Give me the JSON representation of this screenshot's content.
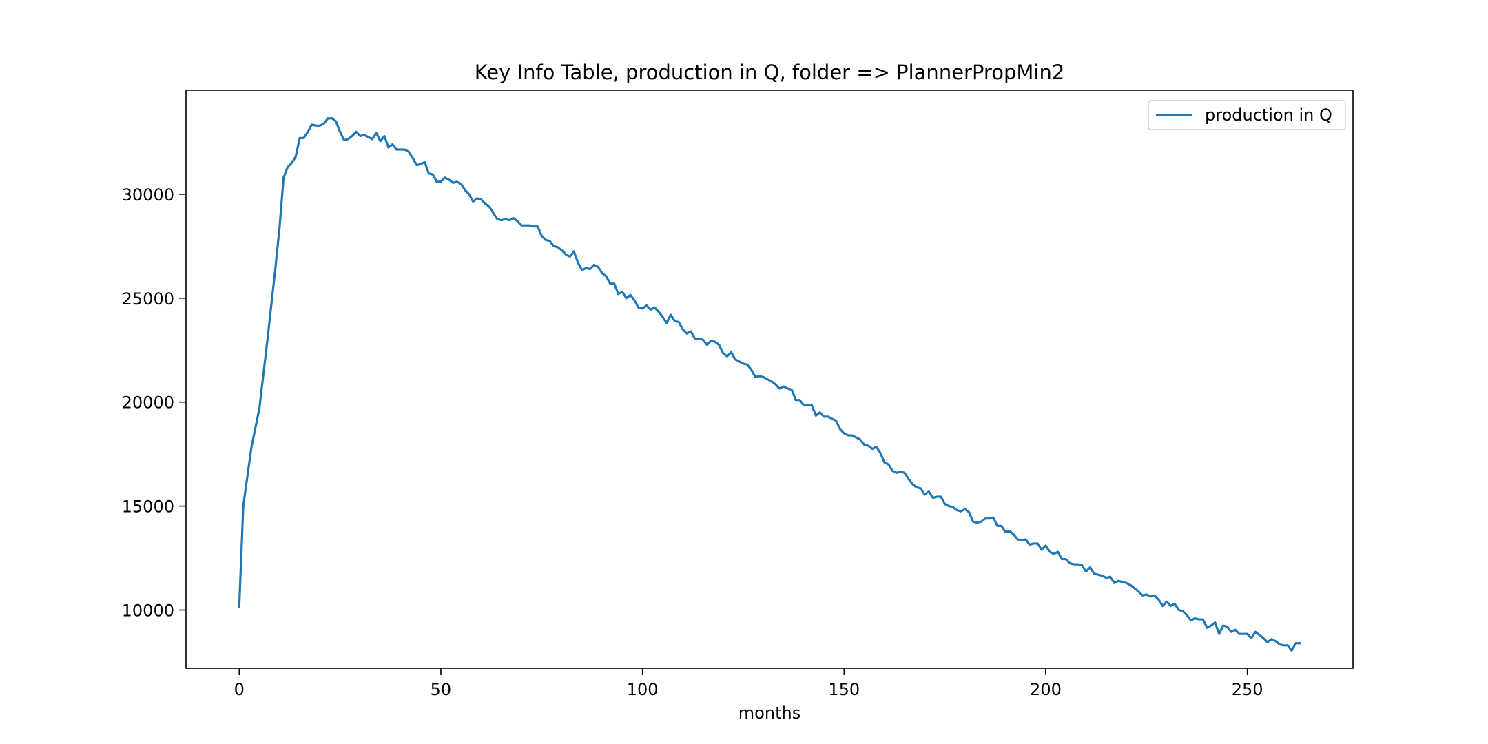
{
  "chart_data": {
    "type": "line",
    "title": "Key Info Table, production in Q, folder => PlannerPropMin2",
    "xlabel": "months",
    "ylabel": "",
    "xlim": [
      -13.2,
      276.2
    ],
    "ylim": [
      7200,
      35000
    ],
    "xticks": [
      0,
      50,
      100,
      150,
      200,
      250
    ],
    "yticks": [
      10000,
      15000,
      20000,
      25000,
      30000
    ],
    "grid": false,
    "legend": {
      "location": "top-right"
    },
    "colors": {
      "series": "#1f77b4",
      "axes": "#000000",
      "legend_border": "#cccccc"
    },
    "series": [
      {
        "name": "production in Q",
        "anchors": [
          [
            0,
            10150
          ],
          [
            1,
            15000
          ],
          [
            3,
            17800
          ],
          [
            5,
            19700
          ],
          [
            7,
            23000
          ],
          [
            9,
            26500
          ],
          [
            10,
            28400
          ],
          [
            11,
            30800
          ],
          [
            12,
            31300
          ],
          [
            13,
            31500
          ],
          [
            14,
            31800
          ],
          [
            15,
            32700
          ],
          [
            16,
            32700
          ],
          [
            17,
            33000
          ],
          [
            18,
            33350
          ],
          [
            19,
            33300
          ],
          [
            20,
            33300
          ],
          [
            21,
            33400
          ],
          [
            22,
            33650
          ],
          [
            23,
            33650
          ],
          [
            24,
            33500
          ],
          [
            25,
            33000
          ],
          [
            26,
            32600
          ],
          [
            27,
            32650
          ],
          [
            28,
            32800
          ],
          [
            29,
            33000
          ],
          [
            30,
            32800
          ],
          [
            31,
            32850
          ],
          [
            32,
            32750
          ],
          [
            33,
            32650
          ],
          [
            34,
            32950
          ],
          [
            35,
            32550
          ],
          [
            36,
            32800
          ],
          [
            37,
            32250
          ],
          [
            38,
            32400
          ],
          [
            39,
            32150
          ],
          [
            40,
            32150
          ],
          [
            41,
            32150
          ],
          [
            42,
            32050
          ],
          [
            43,
            31750
          ],
          [
            44,
            31400
          ],
          [
            45,
            31450
          ],
          [
            46,
            31550
          ],
          [
            47,
            31000
          ],
          [
            48,
            30950
          ],
          [
            49,
            30600
          ],
          [
            50,
            30600
          ],
          [
            51,
            30800
          ],
          [
            52,
            30700
          ],
          [
            53,
            30550
          ],
          [
            54,
            30600
          ],
          [
            55,
            30500
          ],
          [
            56,
            30200
          ],
          [
            57,
            30000
          ],
          [
            58,
            29650
          ],
          [
            59,
            29800
          ],
          [
            60,
            29750
          ],
          [
            61,
            29550
          ],
          [
            62,
            29400
          ],
          [
            63,
            29100
          ],
          [
            64,
            28800
          ],
          [
            65,
            28750
          ],
          [
            66,
            28800
          ],
          [
            67,
            28750
          ],
          [
            68,
            28850
          ],
          [
            69,
            28700
          ],
          [
            70,
            28500
          ],
          [
            71,
            28500
          ],
          [
            72,
            28500
          ],
          [
            73,
            28450
          ],
          [
            74,
            28450
          ],
          [
            75,
            28000
          ],
          [
            76,
            27800
          ],
          [
            77,
            27750
          ],
          [
            78,
            27500
          ],
          [
            79,
            27450
          ],
          [
            80,
            27300
          ],
          [
            81,
            27100
          ],
          [
            82,
            27000
          ],
          [
            83,
            27250
          ],
          [
            84,
            26700
          ],
          [
            85,
            26350
          ],
          [
            86,
            26450
          ],
          [
            87,
            26400
          ],
          [
            88,
            26600
          ],
          [
            89,
            26500
          ],
          [
            90,
            26200
          ],
          [
            91,
            26050
          ],
          [
            92,
            25700
          ],
          [
            93,
            25700
          ],
          [
            94,
            25200
          ],
          [
            95,
            25300
          ],
          [
            96,
            25000
          ],
          [
            97,
            25150
          ],
          [
            98,
            24900
          ],
          [
            99,
            24550
          ],
          [
            100,
            24500
          ],
          [
            101,
            24650
          ],
          [
            102,
            24450
          ],
          [
            103,
            24550
          ],
          [
            104,
            24350
          ],
          [
            105,
            24100
          ],
          [
            106,
            23800
          ],
          [
            107,
            24200
          ],
          [
            108,
            23900
          ],
          [
            109,
            23850
          ],
          [
            110,
            23500
          ],
          [
            111,
            23300
          ],
          [
            112,
            23400
          ],
          [
            113,
            23050
          ],
          [
            114,
            23050
          ],
          [
            115,
            23000
          ],
          [
            116,
            22750
          ],
          [
            117,
            22950
          ],
          [
            118,
            22900
          ],
          [
            119,
            22750
          ],
          [
            120,
            22350
          ],
          [
            121,
            22200
          ],
          [
            122,
            22400
          ],
          [
            123,
            22050
          ],
          [
            124,
            21950
          ],
          [
            125,
            21850
          ],
          [
            126,
            21800
          ],
          [
            127,
            21550
          ],
          [
            128,
            21200
          ],
          [
            129,
            21250
          ],
          [
            130,
            21200
          ],
          [
            131,
            21100
          ],
          [
            132,
            21000
          ],
          [
            133,
            20850
          ],
          [
            134,
            20650
          ],
          [
            135,
            20750
          ],
          [
            136,
            20650
          ],
          [
            137,
            20600
          ],
          [
            138,
            20100
          ],
          [
            139,
            20100
          ],
          [
            140,
            19850
          ],
          [
            141,
            19850
          ],
          [
            142,
            19850
          ],
          [
            143,
            19350
          ],
          [
            144,
            19500
          ],
          [
            145,
            19300
          ],
          [
            146,
            19300
          ],
          [
            147,
            19200
          ],
          [
            148,
            19100
          ],
          [
            149,
            18700
          ],
          [
            150,
            18500
          ],
          [
            151,
            18400
          ],
          [
            152,
            18400
          ],
          [
            153,
            18300
          ],
          [
            154,
            18200
          ],
          [
            155,
            17950
          ],
          [
            156,
            17900
          ],
          [
            157,
            17750
          ],
          [
            158,
            17850
          ],
          [
            159,
            17550
          ],
          [
            160,
            17100
          ],
          [
            161,
            17000
          ],
          [
            162,
            16700
          ],
          [
            163,
            16600
          ],
          [
            164,
            16650
          ],
          [
            165,
            16600
          ],
          [
            166,
            16300
          ],
          [
            167,
            16050
          ],
          [
            168,
            15900
          ],
          [
            169,
            15850
          ],
          [
            170,
            15550
          ],
          [
            171,
            15700
          ],
          [
            172,
            15400
          ],
          [
            173,
            15450
          ],
          [
            174,
            15450
          ],
          [
            175,
            15100
          ],
          [
            176,
            15000
          ],
          [
            177,
            14950
          ],
          [
            178,
            14800
          ],
          [
            179,
            14750
          ],
          [
            180,
            14850
          ],
          [
            181,
            14700
          ],
          [
            182,
            14250
          ],
          [
            183,
            14200
          ],
          [
            184,
            14250
          ],
          [
            185,
            14400
          ],
          [
            186,
            14400
          ],
          [
            187,
            14450
          ],
          [
            188,
            14050
          ],
          [
            189,
            14050
          ],
          [
            190,
            13750
          ],
          [
            191,
            13800
          ],
          [
            192,
            13650
          ],
          [
            193,
            13400
          ],
          [
            194,
            13350
          ],
          [
            195,
            13400
          ],
          [
            196,
            13150
          ],
          [
            197,
            13200
          ],
          [
            198,
            13200
          ],
          [
            199,
            12900
          ],
          [
            200,
            13100
          ],
          [
            201,
            12800
          ],
          [
            202,
            12700
          ],
          [
            203,
            12800
          ],
          [
            204,
            12450
          ],
          [
            205,
            12450
          ],
          [
            206,
            12250
          ],
          [
            207,
            12200
          ],
          [
            208,
            12200
          ],
          [
            209,
            12150
          ],
          [
            210,
            11850
          ],
          [
            211,
            12050
          ],
          [
            212,
            11750
          ],
          [
            213,
            11700
          ],
          [
            214,
            11650
          ],
          [
            215,
            11550
          ],
          [
            216,
            11600
          ],
          [
            217,
            11300
          ],
          [
            218,
            11400
          ],
          [
            219,
            11350
          ],
          [
            220,
            11300
          ],
          [
            221,
            11200
          ],
          [
            222,
            11050
          ],
          [
            223,
            10900
          ],
          [
            224,
            10700
          ],
          [
            225,
            10750
          ],
          [
            226,
            10650
          ],
          [
            227,
            10700
          ],
          [
            228,
            10500
          ],
          [
            229,
            10200
          ],
          [
            230,
            10400
          ],
          [
            231,
            10200
          ],
          [
            232,
            10300
          ],
          [
            233,
            10000
          ],
          [
            234,
            9950
          ],
          [
            235,
            9750
          ],
          [
            236,
            9500
          ],
          [
            237,
            9600
          ],
          [
            238,
            9550
          ],
          [
            239,
            9550
          ],
          [
            240,
            9150
          ],
          [
            241,
            9250
          ],
          [
            242,
            9400
          ],
          [
            243,
            8850
          ],
          [
            244,
            9250
          ],
          [
            245,
            9200
          ],
          [
            246,
            8950
          ],
          [
            247,
            9050
          ],
          [
            248,
            8850
          ],
          [
            249,
            8850
          ],
          [
            250,
            8850
          ],
          [
            251,
            8650
          ],
          [
            252,
            8950
          ],
          [
            253,
            8800
          ],
          [
            254,
            8650
          ],
          [
            255,
            8450
          ],
          [
            256,
            8600
          ],
          [
            257,
            8500
          ],
          [
            258,
            8350
          ],
          [
            259,
            8300
          ],
          [
            260,
            8300
          ],
          [
            261,
            8050
          ],
          [
            262,
            8400
          ],
          [
            263,
            8400
          ]
        ]
      }
    ]
  }
}
